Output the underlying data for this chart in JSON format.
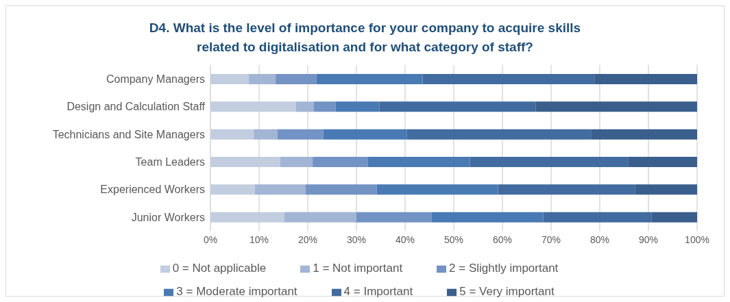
{
  "chart_data": {
    "type": "bar",
    "orientation": "horizontal",
    "stacked": true,
    "title": "D4. What is the level of importance for your company to acquire skills related to digitalisation and for what category of staff?",
    "categories": [
      "Company Managers",
      "Design and Calculation Staff",
      "Technicians and Site Managers",
      "Team Leaders",
      "Experienced Workers",
      "Junior Workers"
    ],
    "series": [
      {
        "name": "0 = Not applicable",
        "color": "#c3cde0",
        "values": [
          7.9,
          17.6,
          8.9,
          14.3,
          9.1,
          15.2
        ]
      },
      {
        "name": "1 = Not important",
        "color": "#a2b5d5",
        "values": [
          5.5,
          3.6,
          4.9,
          6.7,
          10.4,
          14.8
        ]
      },
      {
        "name": "2 = Slightly important",
        "color": "#7393c4",
        "values": [
          8.4,
          4.5,
          9.4,
          11.3,
          14.7,
          15.4
        ]
      },
      {
        "name": "3 = Moderate important",
        "color": "#4a7ab4",
        "values": [
          21.8,
          9.0,
          17.2,
          21.0,
          24.9,
          23.0
        ]
      },
      {
        "name": "4 = Important",
        "color": "#426ca0",
        "values": [
          35.3,
          32.1,
          37.9,
          32.6,
          28.2,
          22.2
        ]
      },
      {
        "name": "5 = Very important",
        "color": "#3a5f8c",
        "values": [
          21.1,
          33.2,
          21.7,
          14.1,
          12.7,
          9.4
        ]
      }
    ],
    "xlim": [
      0,
      100
    ],
    "xticks": [
      {
        "value": 0,
        "label": "0%"
      },
      {
        "value": 10,
        "label": "10%"
      },
      {
        "value": 20,
        "label": "20%"
      },
      {
        "value": 30,
        "label": "30%"
      },
      {
        "value": 40,
        "label": "40%"
      },
      {
        "value": 50,
        "label": "50%"
      },
      {
        "value": 60,
        "label": "60%"
      },
      {
        "value": 70,
        "label": "70%"
      },
      {
        "value": 80,
        "label": "80%"
      },
      {
        "value": 90,
        "label": "90%"
      },
      {
        "value": 100,
        "label": "100%"
      }
    ],
    "grid": "x",
    "legend": "bottom"
  }
}
